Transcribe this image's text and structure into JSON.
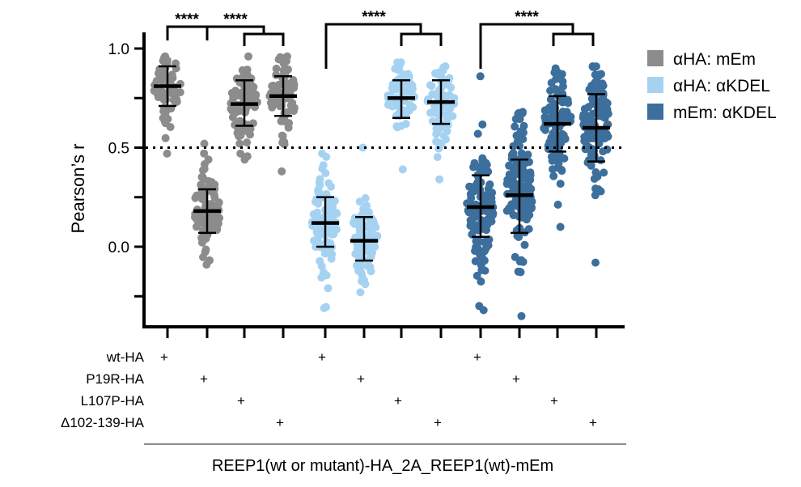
{
  "chart_data": {
    "type": "scatter",
    "ylabel": "Pearson’s r",
    "ylim": [
      -0.38,
      1.05
    ],
    "yticks": [
      {
        "value": 1.0,
        "label": "1.0"
      },
      {
        "value": 0.5,
        "label": "0.5"
      },
      {
        "value": 0.0,
        "label": "0.0"
      }
    ],
    "reference_line": 0.5,
    "legend": [
      {
        "name": "αHA: mEm",
        "color": "#8c8c8c"
      },
      {
        "name": "αHA: αKDEL",
        "color": "#a6d2f2"
      },
      {
        "name": "mEm: αKDEL",
        "color": "#3d6f9c"
      }
    ],
    "row_labels": [
      "wt-HA",
      "P19R-HA",
      "L107P-HA",
      "Δ102-139-HA"
    ],
    "footer": "REEP1(wt or mutant)-HA_2A_REEP1(wt)-mEm",
    "series": [
      {
        "name": "αHA: mEm",
        "construct": "wt-HA",
        "mean": 0.81,
        "sd_low": 0.71,
        "sd_high": 0.91,
        "min": 0.47,
        "max": 0.96,
        "n": 70
      },
      {
        "name": "αHA: mEm",
        "construct": "P19R-HA",
        "mean": 0.18,
        "sd_low": 0.07,
        "sd_high": 0.29,
        "min": -0.09,
        "max": 0.52,
        "n": 95
      },
      {
        "name": "αHA: mEm",
        "construct": "L107P-HA",
        "mean": 0.72,
        "sd_low": 0.61,
        "sd_high": 0.84,
        "min": 0.44,
        "max": 0.96,
        "n": 90
      },
      {
        "name": "αHA: mEm",
        "construct": "Δ102-139-HA",
        "mean": 0.76,
        "sd_low": 0.66,
        "sd_high": 0.86,
        "min": 0.38,
        "max": 0.96,
        "n": 80
      },
      {
        "name": "αHA: αKDEL",
        "construct": "wt-HA",
        "mean": 0.12,
        "sd_low": 0.0,
        "sd_high": 0.25,
        "min": -0.31,
        "max": 0.47,
        "n": 90
      },
      {
        "name": "αHA: αKDEL",
        "construct": "P19R-HA",
        "mean": 0.03,
        "sd_low": -0.07,
        "sd_high": 0.15,
        "min": -0.23,
        "max": 0.5,
        "n": 85
      },
      {
        "name": "αHA: αKDEL",
        "construct": "L107P-HA",
        "mean": 0.75,
        "sd_low": 0.65,
        "sd_high": 0.84,
        "min": 0.39,
        "max": 0.93,
        "n": 70
      },
      {
        "name": "αHA: αKDEL",
        "construct": "Δ102-139-HA",
        "mean": 0.73,
        "sd_low": 0.62,
        "sd_high": 0.84,
        "min": 0.34,
        "max": 0.91,
        "n": 70
      },
      {
        "name": "mEm: αKDEL",
        "construct": "wt-HA",
        "mean": 0.2,
        "sd_low": 0.05,
        "sd_high": 0.36,
        "min": -0.32,
        "max": 0.86,
        "n": 110
      },
      {
        "name": "mEm: αKDEL",
        "construct": "P19R-HA",
        "mean": 0.26,
        "sd_low": 0.07,
        "sd_high": 0.44,
        "min": -0.35,
        "max": 0.68,
        "n": 130
      },
      {
        "name": "mEm: αKDEL",
        "construct": "L107P-HA",
        "mean": 0.62,
        "sd_low": 0.48,
        "sd_high": 0.76,
        "min": 0.1,
        "max": 0.9,
        "n": 100
      },
      {
        "name": "mEm: αKDEL",
        "construct": "Δ102-139-HA",
        "mean": 0.6,
        "sd_low": 0.43,
        "sd_high": 0.77,
        "min": -0.08,
        "max": 0.91,
        "n": 120
      }
    ],
    "significance": [
      {
        "label": "****",
        "from": "αHA: mEm / wt-HA",
        "to": "αHA: mEm / P19R-HA"
      },
      {
        "label": "****",
        "from": "αHA: mEm / P19R-HA",
        "to": "αHA: mEm / L107P-HA + Δ102-139-HA"
      },
      {
        "label": "****",
        "from": "αHA: αKDEL / wt-HA + P19R-HA",
        "to": "αHA: αKDEL / L107P-HA + Δ102-139-HA"
      },
      {
        "label": "****",
        "from": "mEm: αKDEL / wt-HA + P19R-HA",
        "to": "mEm: αKDEL / L107P-HA + Δ102-139-HA"
      }
    ]
  }
}
